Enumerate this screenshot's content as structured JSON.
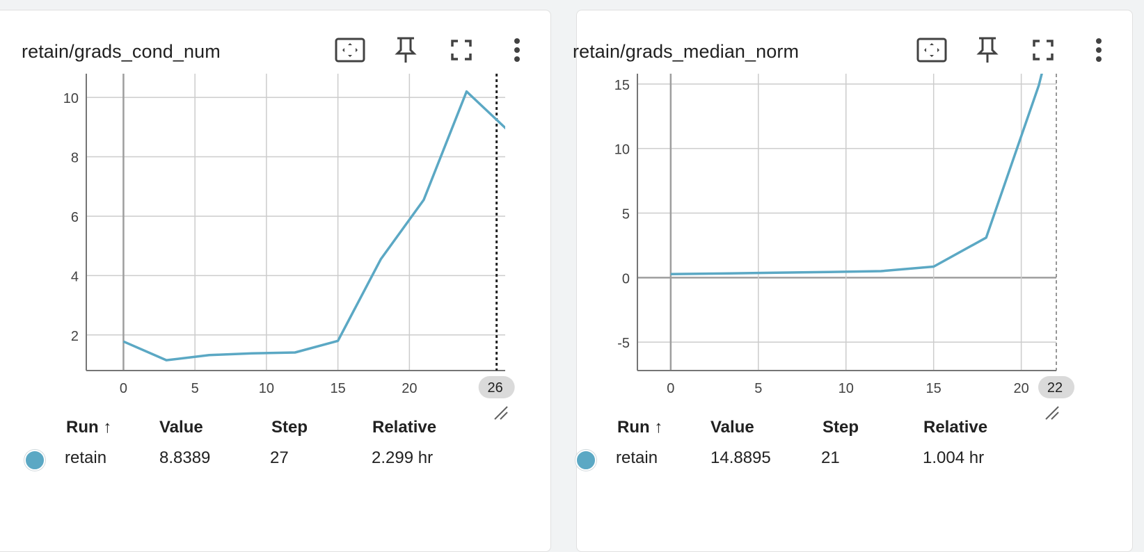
{
  "accent_color": "#5ba8c4",
  "cards": [
    {
      "title": "retain/grads_cond_num",
      "toolbar": [
        {
          "icon": "fit-to-data-icon",
          "name": "fit-domain-button"
        },
        {
          "icon": "pin-icon",
          "name": "pin-button"
        },
        {
          "icon": "fullscreen-icon",
          "name": "fullscreen-button"
        },
        {
          "icon": "more-vert-icon",
          "name": "more-options-button"
        }
      ],
      "chart_data": {
        "type": "line",
        "series": [
          {
            "x": [
              0,
              3,
              6,
              9,
              12,
              15,
              18,
              21,
              24,
              27
            ],
            "y": [
              1.78,
              1.15,
              1.32,
              1.38,
              1.41,
              1.8,
              4.55,
              6.55,
              10.2,
              8.8389
            ]
          }
        ],
        "xlim": [
          -2.6,
          26.7
        ],
        "ylim": [
          0.8,
          10.8
        ],
        "x_ticks": [
          "0",
          "5",
          "10",
          "15",
          "20"
        ],
        "y_ticks": [
          "2",
          "4",
          "6",
          "8",
          "10"
        ],
        "hover_step": "26",
        "hover_step_x": 26.1,
        "grid": true
      },
      "table": {
        "headers": {
          "run": "Run ↑",
          "value": "Value",
          "step": "Step",
          "relative": "Relative"
        },
        "rows": [
          {
            "run": "retain",
            "value": "8.8389",
            "step": "27",
            "relative": "2.299 hr"
          }
        ]
      }
    },
    {
      "title": "retain/grads_median_norm",
      "toolbar": [
        {
          "icon": "fit-to-data-icon",
          "name": "fit-domain-button"
        },
        {
          "icon": "pin-icon",
          "name": "pin-button"
        },
        {
          "icon": "fullscreen-icon",
          "name": "fullscreen-button"
        },
        {
          "icon": "more-vert-icon",
          "name": "more-options-button"
        }
      ],
      "chart_data": {
        "type": "line",
        "series": [
          {
            "x": [
              0,
              3,
              6,
              9,
              12,
              15,
              18,
              21,
              21.3
            ],
            "y": [
              0.27,
              0.32,
              0.38,
              0.44,
              0.5,
              0.85,
              3.1,
              14.8895,
              16.5
            ]
          }
        ],
        "xlim": [
          -1.9,
          22.0
        ],
        "ylim": [
          -7.2,
          15.8
        ],
        "x_ticks": [
          "0",
          "5",
          "10",
          "15",
          "20"
        ],
        "y_ticks": [
          "-5",
          "0",
          "5",
          "10",
          "15"
        ],
        "hover_step": "22",
        "hover_step_x": 22.0,
        "grid": true
      },
      "table": {
        "headers": {
          "run": "Run ↑",
          "value": "Value",
          "step": "Step",
          "relative": "Relative"
        },
        "rows": [
          {
            "run": "retain",
            "value": "14.8895",
            "step": "21",
            "relative": "1.004 hr"
          }
        ]
      }
    }
  ]
}
